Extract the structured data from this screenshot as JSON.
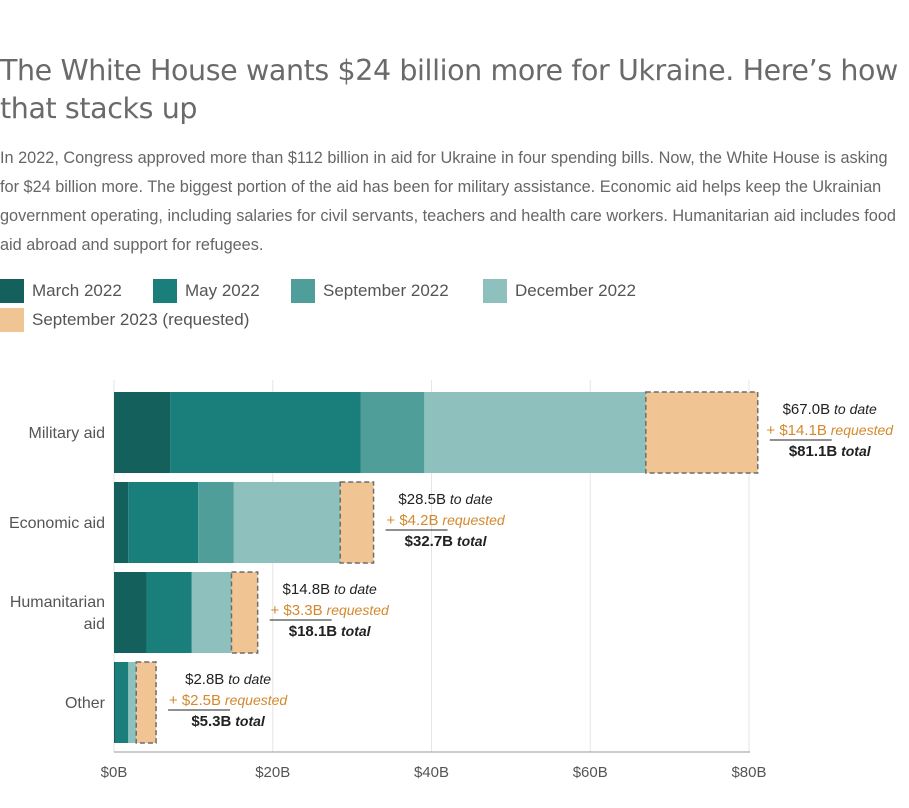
{
  "title": "The White House wants $24 billion more for Ukraine. Here’s how that stacks up",
  "subtitle": "In 2022, Congress approved more than $112 billion in aid for Ukraine in four spending bills. Now, the White House is asking for $24 billion more. The biggest portion of the aid has been for military assistance. Economic aid helps keep the Ukrainian government operating, including salaries for civil servants, teachers and health care workers. Humanitarian aid includes food aid abroad and support for refugees.",
  "legend": [
    {
      "label": "March 2022",
      "color": "#14605c"
    },
    {
      "label": "May 2022",
      "color": "#1a7f7b"
    },
    {
      "label": "September 2022",
      "color": "#4f9e99"
    },
    {
      "label": "December 2022",
      "color": "#8ec0bd"
    },
    {
      "label": "September 2023 (requested)",
      "color": "#f0c593"
    }
  ],
  "chart_data": {
    "type": "bar",
    "orientation": "horizontal",
    "stacked": true,
    "categories": [
      "Military aid",
      "Economic aid",
      "Humanitarian aid",
      "Other"
    ],
    "series": [
      {
        "name": "March 2022",
        "color": "#14605c",
        "values": [
          7.1,
          1.8,
          4.1,
          0.2
        ]
      },
      {
        "name": "May 2022",
        "color": "#1a7f7b",
        "values": [
          24.0,
          8.8,
          5.7,
          1.6
        ]
      },
      {
        "name": "September 2022",
        "color": "#4f9e99",
        "values": [
          8.0,
          4.5,
          0,
          0
        ]
      },
      {
        "name": "December 2022",
        "color": "#8ec0bd",
        "values": [
          27.9,
          13.4,
          5.0,
          1.0
        ]
      },
      {
        "name": "September 2023 (requested)",
        "color": "#f0c593",
        "values": [
          14.1,
          4.2,
          3.3,
          2.5
        ],
        "dashed": true
      }
    ],
    "xlim": [
      0,
      80
    ],
    "xticks": [
      "$0B",
      "$20B",
      "$40B",
      "$60B",
      "$80B"
    ],
    "xtick_values": [
      0,
      20,
      40,
      60,
      80
    ],
    "grid": true,
    "annotations": [
      {
        "to_date": "$67.0B",
        "requested": "+ $14.1B",
        "total": "$81.1B"
      },
      {
        "to_date": "$28.5B",
        "requested": "+ $4.2B",
        "total": "$32.7B"
      },
      {
        "to_date": "$14.8B",
        "requested": "+ $3.3B",
        "total": "$18.1B"
      },
      {
        "to_date": "$2.8B",
        "requested": "+ $2.5B",
        "total": "$5.3B"
      }
    ],
    "annotation_suffixes": {
      "to_date": "to date",
      "requested": "requested",
      "total": "total"
    }
  }
}
